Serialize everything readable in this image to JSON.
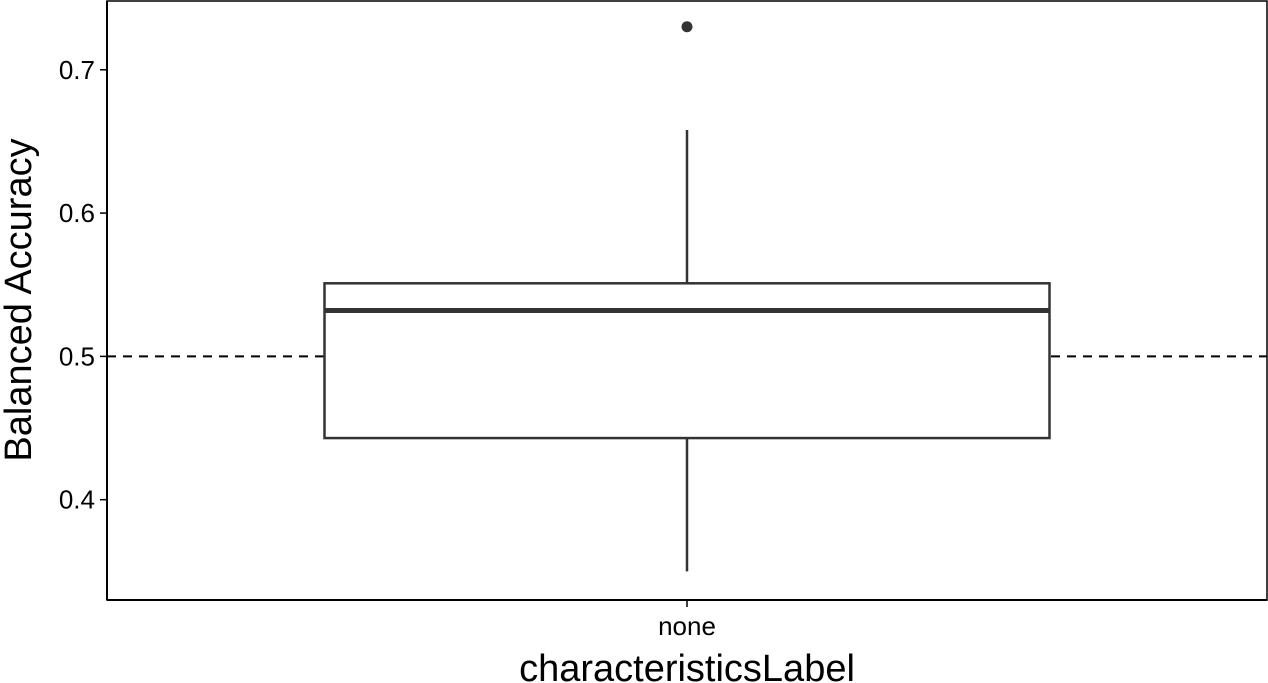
{
  "chart_data": {
    "type": "box",
    "xlabel": "characteristicsLabel",
    "ylabel": "Balanced Accuracy",
    "categories": [
      "none"
    ],
    "boxes": [
      {
        "category": "none",
        "whisker_low": 0.35,
        "q1": 0.443,
        "median": 0.532,
        "q3": 0.551,
        "whisker_high": 0.658,
        "outliers": [
          0.73
        ]
      }
    ],
    "reference_line": {
      "y": 0.5,
      "style": "dashed"
    },
    "yticks": [
      "0.4",
      "0.5",
      "0.6",
      "0.7"
    ],
    "ylim": [
      0.33,
      0.748
    ],
    "grid": false,
    "legend": "none",
    "colors": {
      "box_line": "#333333",
      "box_fill": "#ffffff",
      "axis": "#000000",
      "reference_line": "#000000"
    }
  }
}
